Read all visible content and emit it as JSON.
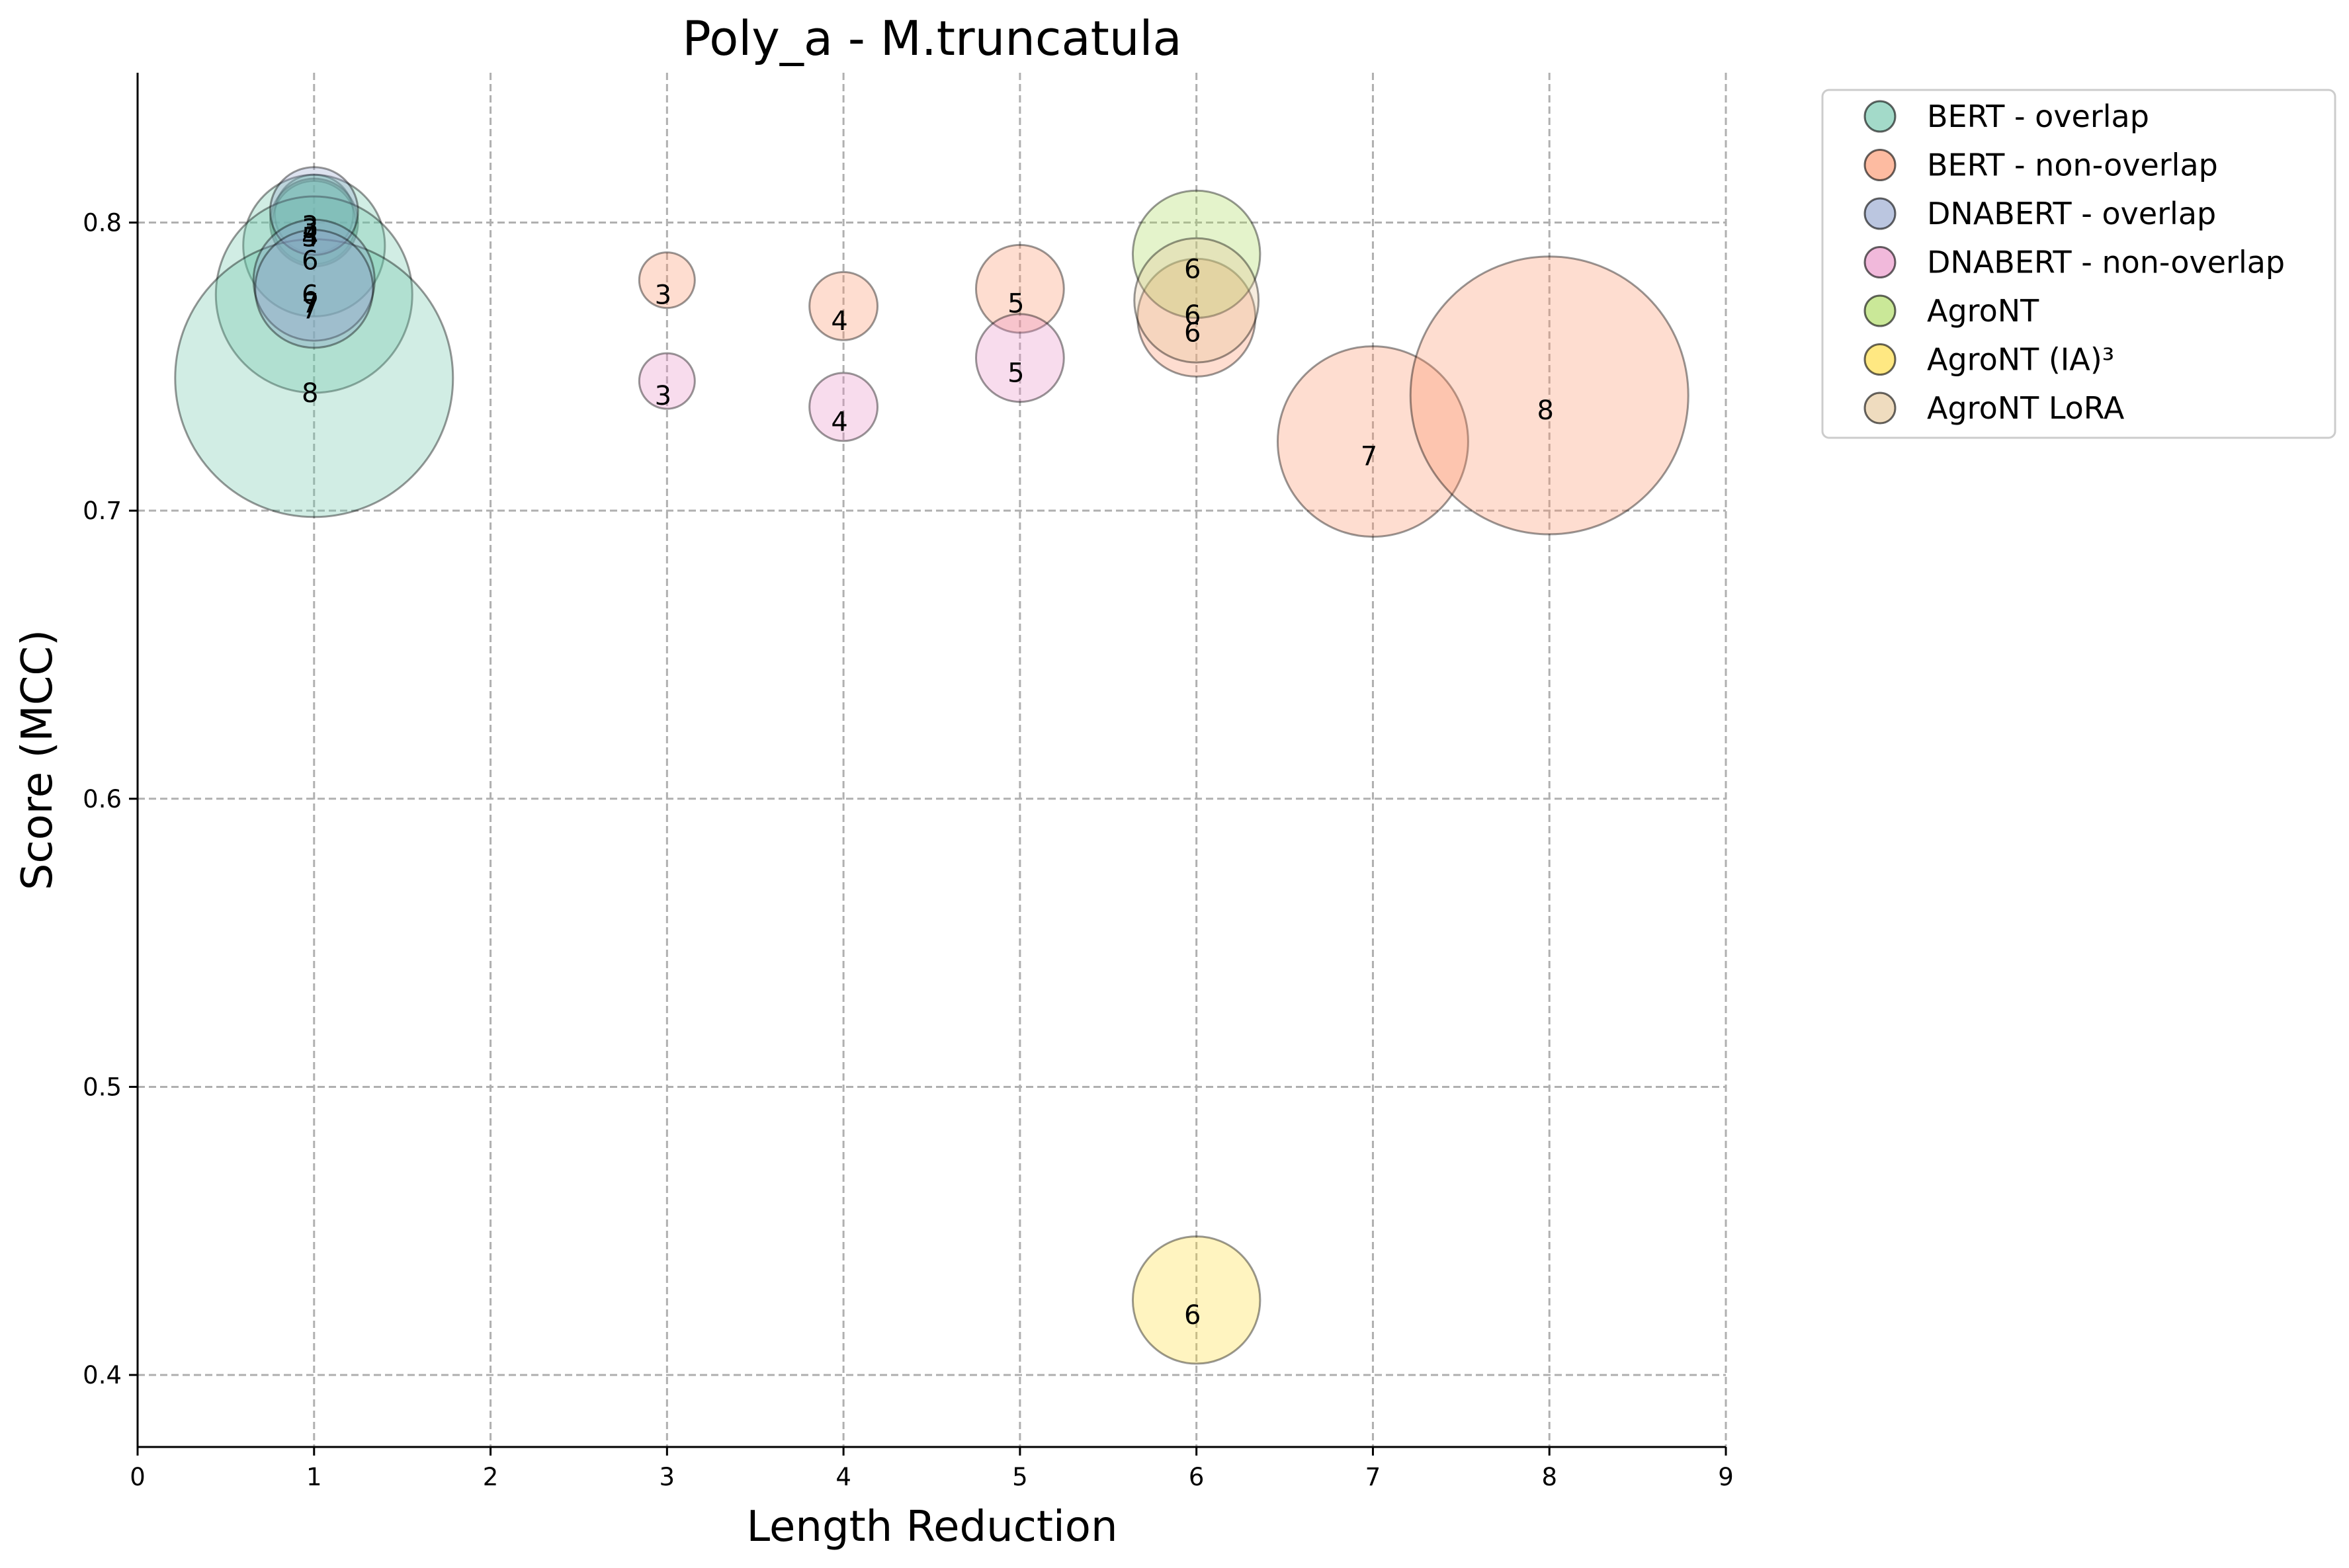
{
  "chart_data": {
    "type": "scatter",
    "title": "Poly_a - M.truncatula",
    "xlabel": "Length Reduction",
    "ylabel": "Score (MCC)",
    "xlim": [
      0,
      9
    ],
    "ylim": [
      0.375,
      0.852
    ],
    "xticks": [
      "0",
      "1",
      "2",
      "3",
      "4",
      "5",
      "6",
      "7",
      "8",
      "9"
    ],
    "yticks": [
      {
        "value": 0.4,
        "label": "0.4"
      },
      {
        "value": 0.5,
        "label": "0.5"
      },
      {
        "value": 0.6,
        "label": "0.6"
      },
      {
        "value": 0.7,
        "label": "0.7"
      },
      {
        "value": 0.8,
        "label": "0.8"
      }
    ],
    "grid": true,
    "legend_position": "outside-right",
    "series": [
      {
        "name": "BERT - overlap",
        "color": "#66c2a5",
        "points": [
          {
            "x": 1,
            "y": 0.803,
            "label": "3",
            "size": 8
          },
          {
            "x": 1,
            "y": 0.8,
            "label": "4",
            "size": 9
          },
          {
            "x": 1,
            "y": 0.8,
            "label": "5",
            "size": 10
          },
          {
            "x": 1,
            "y": 0.792,
            "label": "6",
            "size": 26
          },
          {
            "x": 1,
            "y": 0.775,
            "label": "7",
            "size": 50
          },
          {
            "x": 1,
            "y": 0.746,
            "label": "8",
            "size": 100
          }
        ]
      },
      {
        "name": "BERT - non-overlap",
        "color": "#fc8d62",
        "points": [
          {
            "x": 3,
            "y": 0.78,
            "label": "3",
            "size": 4
          },
          {
            "x": 4,
            "y": 0.771,
            "label": "4",
            "size": 6
          },
          {
            "x": 5,
            "y": 0.777,
            "label": "5",
            "size": 10
          },
          {
            "x": 6,
            "y": 0.767,
            "label": "6",
            "size": 18
          },
          {
            "x": 7,
            "y": 0.724,
            "label": "7",
            "size": 47
          },
          {
            "x": 8,
            "y": 0.74,
            "label": "8",
            "size": 100
          }
        ]
      },
      {
        "name": "DNABERT - overlap",
        "color": "#8da0cb",
        "points": [
          {
            "x": 1,
            "y": 0.804,
            "label": "3",
            "size": 10
          },
          {
            "x": 1,
            "y": 0.78,
            "label": "6",
            "size": 19
          },
          {
            "x": 1,
            "y": 0.777,
            "label": "7",
            "size": 18
          }
        ]
      },
      {
        "name": "DNABERT - non-overlap",
        "color": "#e78ac3",
        "points": [
          {
            "x": 3,
            "y": 0.745,
            "label": "3",
            "size": 4
          },
          {
            "x": 4,
            "y": 0.736,
            "label": "4",
            "size": 6
          },
          {
            "x": 5,
            "y": 0.753,
            "label": "5",
            "size": 10
          }
        ]
      },
      {
        "name": "AgroNT",
        "color": "#a6d854",
        "points": [
          {
            "x": 6,
            "y": 0.789,
            "label": "6",
            "size": 21
          }
        ]
      },
      {
        "name": "AgroNT (IA)³",
        "color": "#ffd92f",
        "points": [
          {
            "x": 6,
            "y": 0.426,
            "label": "6",
            "size": 21
          }
        ]
      },
      {
        "name": "AgroNT LoRA",
        "color": "#e5c494",
        "points": [
          {
            "x": 6,
            "y": 0.773,
            "label": "6",
            "size": 20
          }
        ]
      }
    ]
  }
}
